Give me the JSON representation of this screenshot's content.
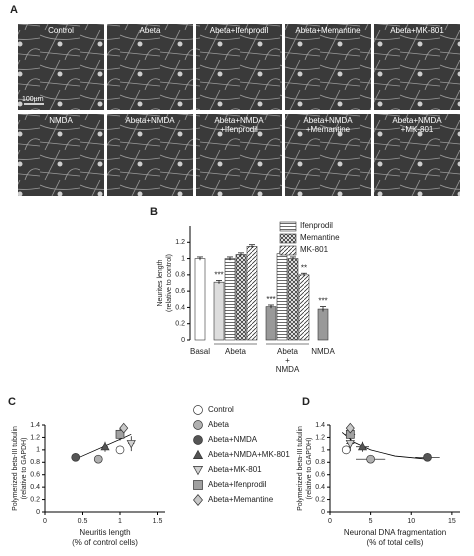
{
  "panel_a": {
    "panel_label": "A",
    "scale_bar": "100µm",
    "images": [
      [
        "Control"
      ],
      [
        "Abeta"
      ],
      [
        "Abeta+Ifenprodil"
      ],
      [
        "Abeta+Memantine"
      ],
      [
        "Abeta+MK-801"
      ],
      [
        "NMDA"
      ],
      [
        "Abeta+NMDA"
      ],
      [
        "Abeta+NMDA",
        "+Ifenprodil"
      ],
      [
        "Abeta+NMDA",
        "+Memantine"
      ],
      [
        "Abeta+NMDA",
        "+MK-801"
      ]
    ]
  },
  "chart_data": [
    {
      "type": "bar",
      "panel_label": "B",
      "ylabel": [
        "Neurites length",
        "(relative to control)"
      ],
      "categories": [
        "Basal",
        "Abeta",
        null,
        null,
        null,
        [
          "Abeta",
          "+",
          "NMDA"
        ],
        null,
        null,
        null,
        "NMDA"
      ],
      "values": [
        1.0,
        0.71,
        1.0,
        1.05,
        1.15,
        0.41,
        1.06,
        1.0,
        0.8,
        0.38
      ],
      "errors": [
        0.02,
        0.02,
        0.02,
        0.02,
        0.02,
        0.02,
        0.02,
        0.02,
        0.02,
        0.03
      ],
      "annotations": [
        null,
        "***",
        null,
        null,
        null,
        "***",
        null,
        null,
        "**",
        "***"
      ],
      "fills": [
        "#ffffff",
        "#dddddd",
        "#ffffff",
        "#ffffff",
        "#ffffff",
        "#999999",
        "#ffffff",
        "#ffffff",
        "#ffffff",
        "#999999"
      ],
      "patterns": [
        "none",
        "none",
        "hlines",
        "cross",
        "diag",
        "none",
        "hlines",
        "cross",
        "diag",
        "none"
      ],
      "legend": [
        {
          "name": "Ifenprodil",
          "pattern": "hlines"
        },
        {
          "name": "Memantine",
          "pattern": "cross"
        },
        {
          "name": "MK-801",
          "pattern": "diag"
        }
      ],
      "ylim": [
        0,
        1.4
      ],
      "yticks": [
        0,
        0.2,
        0.4,
        0.6,
        0.8,
        1,
        1.2
      ]
    },
    {
      "type": "scatter",
      "panel_label": "C",
      "xlabel": [
        "Neuritis length",
        "(% of control cells)"
      ],
      "ylabel": [
        "Polymerized beta-III tubulin",
        "(relative to GAPDH)"
      ],
      "xlim": [
        0,
        1.6
      ],
      "xticks": [
        0,
        0.5,
        1,
        1.5
      ],
      "ylim": [
        0,
        1.4
      ],
      "yticks": [
        0,
        0.2,
        0.4,
        0.6,
        0.8,
        1,
        1.2,
        1.4
      ],
      "trend": {
        "x": [
          0.4,
          1.15
        ],
        "y": [
          0.85,
          1.25
        ]
      },
      "series": [
        {
          "name": "Control",
          "marker": "circle",
          "color": "#ffffff",
          "x": [
            1.0
          ],
          "y": [
            1.0
          ],
          "xerr": [
            0.03
          ],
          "yerr": [
            0.05
          ]
        },
        {
          "name": "Abeta",
          "marker": "circle",
          "color": "#b0b0b0",
          "x": [
            0.71
          ],
          "y": [
            0.85
          ],
          "xerr": [
            0.02
          ],
          "yerr": [
            0.04
          ]
        },
        {
          "name": "Abeta+NMDA",
          "marker": "circle",
          "color": "#555555",
          "x": [
            0.41
          ],
          "y": [
            0.88
          ],
          "xerr": [
            0.03
          ],
          "yerr": [
            0.06
          ]
        },
        {
          "name": "Abeta+NMDA+MK-801",
          "marker": "triangle",
          "color": "#555555",
          "x": [
            0.8
          ],
          "y": [
            1.05
          ],
          "xerr": [
            0.04
          ],
          "yerr": [
            0.08
          ]
        },
        {
          "name": "Abeta+MK-801",
          "marker": "triangle-down",
          "color": "#d0d0d0",
          "x": [
            1.15
          ],
          "y": [
            1.1
          ],
          "xerr": [
            0.04
          ],
          "yerr": [
            0.12
          ]
        },
        {
          "name": "Abeta+Ifenprodil",
          "marker": "square",
          "color": "#a0a0a0",
          "x": [
            1.0
          ],
          "y": [
            1.25
          ],
          "xerr": [
            0.04
          ],
          "yerr": [
            0.1
          ]
        },
        {
          "name": "Abeta+Memantine",
          "marker": "diamond",
          "color": "#c8c8c8",
          "x": [
            1.05
          ],
          "y": [
            1.35
          ],
          "xerr": [
            0.03
          ],
          "yerr": [
            0.06
          ]
        }
      ]
    },
    {
      "type": "scatter",
      "panel_label": "D",
      "xlabel": [
        "Neuronal DNA fragmentation",
        "(% of total cells)"
      ],
      "ylabel": [
        "Polymerized beta-III tubulin",
        "(relative to GAPDH)"
      ],
      "xlim": [
        0,
        16
      ],
      "xticks": [
        0,
        5,
        10,
        15
      ],
      "ylim": [
        0,
        1.4
      ],
      "yticks": [
        0,
        0.2,
        0.4,
        0.6,
        0.8,
        1,
        1.2,
        1.4
      ],
      "trend": {
        "x": [
          1.5,
          3,
          5,
          8,
          12
        ],
        "y": [
          1.28,
          1.12,
          1.0,
          0.9,
          0.85
        ]
      },
      "series": [
        {
          "marker": "circle",
          "color": "#ffffff",
          "x": [
            2.0
          ],
          "y": [
            1.0
          ],
          "xerr": [
            0.5
          ],
          "yerr": [
            0.05
          ]
        },
        {
          "marker": "circle",
          "color": "#b0b0b0",
          "x": [
            5.0
          ],
          "y": [
            0.85
          ],
          "xerr": [
            1.8
          ],
          "yerr": [
            0.04
          ]
        },
        {
          "marker": "circle",
          "color": "#555555",
          "x": [
            12.0
          ],
          "y": [
            0.88
          ],
          "xerr": [
            1.5
          ],
          "yerr": [
            0.06
          ]
        },
        {
          "marker": "triangle",
          "color": "#555555",
          "x": [
            4.0
          ],
          "y": [
            1.05
          ],
          "xerr": [
            0.8
          ],
          "yerr": [
            0.08
          ]
        },
        {
          "marker": "triangle-down",
          "color": "#d0d0d0",
          "x": [
            2.5
          ],
          "y": [
            1.1
          ],
          "xerr": [
            0.5
          ],
          "yerr": [
            0.12
          ]
        },
        {
          "marker": "square",
          "color": "#a0a0a0",
          "x": [
            2.5
          ],
          "y": [
            1.25
          ],
          "xerr": [
            0.6
          ],
          "yerr": [
            0.1
          ]
        },
        {
          "marker": "diamond",
          "color": "#c8c8c8",
          "x": [
            2.5
          ],
          "y": [
            1.35
          ],
          "xerr": [
            0.5
          ],
          "yerr": [
            0.06
          ]
        }
      ]
    }
  ]
}
